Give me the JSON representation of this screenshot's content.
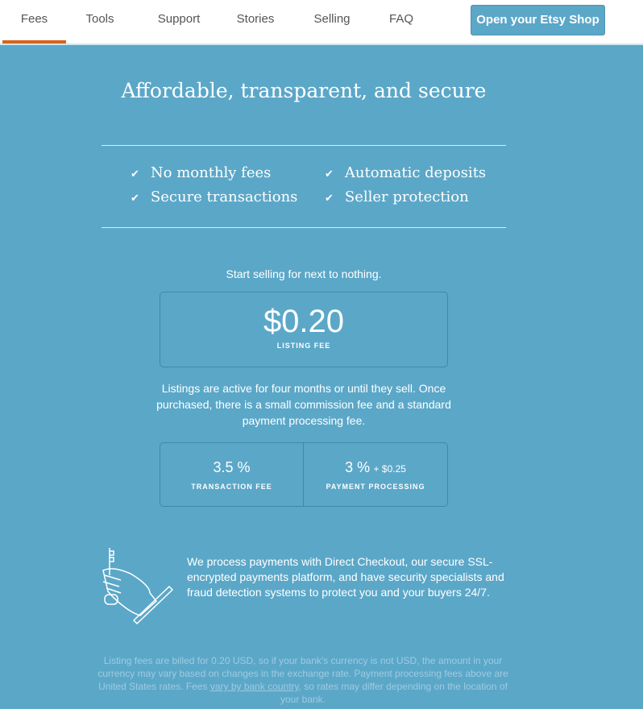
{
  "nav": {
    "tabs": [
      "Fees",
      "Tools",
      "Support",
      "Stories",
      "Selling",
      "FAQ"
    ],
    "active": "Fees",
    "cta": "Open your Etsy Shop"
  },
  "hero": {
    "title": "Affordable, transparent, and secure",
    "features": [
      "No monthly fees",
      "Automatic deposits",
      "Secure transactions",
      "Seller protection"
    ]
  },
  "pricing": {
    "intro": "Start selling for next to nothing.",
    "listing_fee": "$0.20",
    "listing_label": "LISTING FEE",
    "description": "Listings are active for four months or until they sell. Once purchased, there is a small commission fee and a standard payment processing fee.",
    "transaction_fee": "3.5 %",
    "transaction_label": "TRANSACTION FEE",
    "processing_fee": "3 %",
    "processing_extra": "+ $0.25",
    "processing_label": "PAYMENT PROCESSING"
  },
  "security": {
    "text": "We process payments with Direct Checkout, our secure SSL-encrypted payments platform, and have security specialists and fraud detection systems to protect you and your buyers 24/7.",
    "icon": "hand-key-icon"
  },
  "footnote": {
    "before": "Listing fees are billed for 0.20 USD, so if your bank's currency is not USD, the amount in your currency may vary based on changes in the exchange rate. Payment processing fees above are United States rates. Fees ",
    "link": "vary by bank country",
    "after": ", so rates may differ depending on the location of your bank."
  },
  "colors": {
    "background": "#5ba7c8",
    "accent": "#d5641c"
  }
}
